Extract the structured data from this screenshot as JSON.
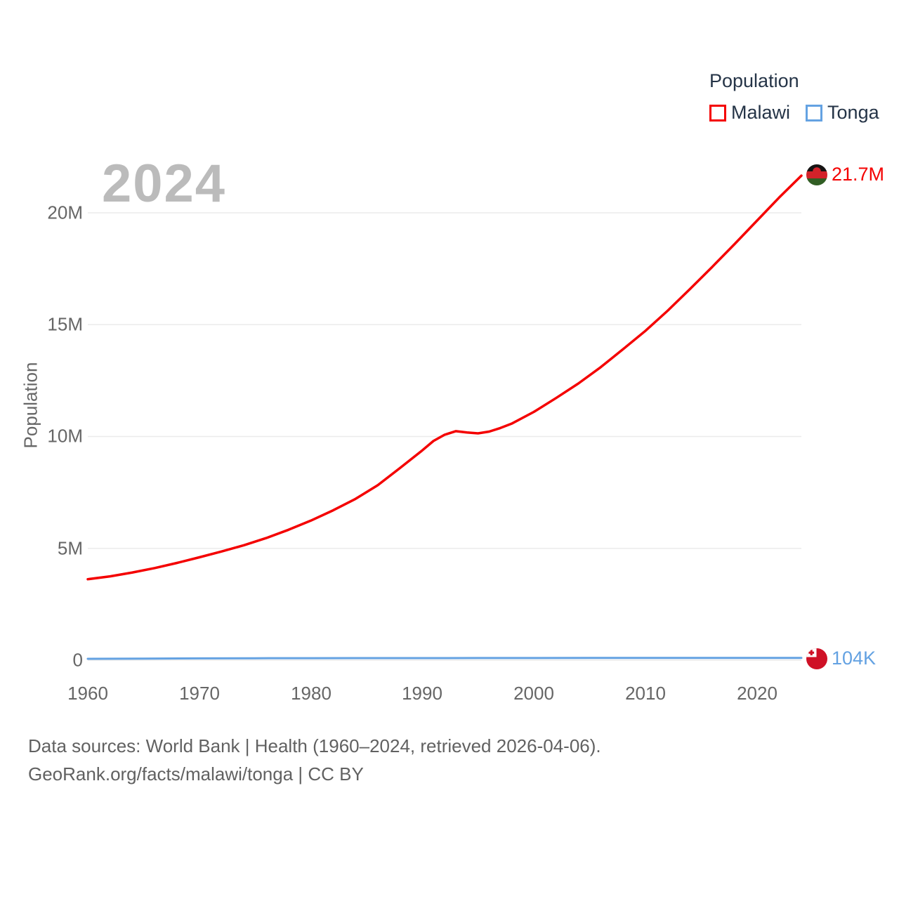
{
  "watermark": "2024",
  "legend": {
    "title": "Population",
    "items": [
      {
        "label": "Malawi",
        "color": "#f40000"
      },
      {
        "label": "Tonga",
        "color": "#64a2e2"
      }
    ]
  },
  "axes": {
    "y_label": "Population",
    "y_ticks": [
      "0",
      "5M",
      "10M",
      "15M",
      "20M"
    ],
    "x_ticks": [
      "1960",
      "1970",
      "1980",
      "1990",
      "2000",
      "2010",
      "2020"
    ]
  },
  "footer": {
    "line1": "Data sources: World Bank | Health (1960–2024, retrieved 2026-04-06).",
    "line2": "GeoRank.org/facts/malawi/tonga | CC BY"
  },
  "chart_data": {
    "type": "line",
    "year_label": "2024",
    "ylabel": "Population",
    "xlabel": "",
    "x_range": [
      1960,
      2024
    ],
    "y_range": [
      0,
      20000000
    ],
    "grid": "horizontal",
    "gridline_values": [
      0,
      5000000,
      10000000,
      15000000,
      20000000
    ],
    "legend_position": "top-right",
    "series": [
      {
        "name": "Malawi",
        "color": "#f40000",
        "end_label": "21.7M",
        "flag": "malawi",
        "x": [
          1960,
          1962,
          1964,
          1966,
          1968,
          1970,
          1972,
          1974,
          1976,
          1978,
          1980,
          1982,
          1984,
          1986,
          1988,
          1990,
          1991,
          1992,
          1993,
          1994,
          1995,
          1996,
          1997,
          1998,
          2000,
          2002,
          2004,
          2006,
          2008,
          2010,
          2012,
          2014,
          2016,
          2018,
          2020,
          2022,
          2024
        ],
        "values": [
          3620000,
          3750000,
          3920000,
          4120000,
          4350000,
          4600000,
          4860000,
          5140000,
          5460000,
          5830000,
          6240000,
          6700000,
          7210000,
          7820000,
          8590000,
          9380000,
          9800000,
          10080000,
          10240000,
          10180000,
          10140000,
          10220000,
          10380000,
          10570000,
          11100000,
          11720000,
          12370000,
          13100000,
          13900000,
          14720000,
          15620000,
          16590000,
          17580000,
          18600000,
          19640000,
          20680000,
          21660000
        ]
      },
      {
        "name": "Tonga",
        "color": "#64a2e2",
        "end_label": "104K",
        "flag": "tonga",
        "x": [
          1960,
          1965,
          1970,
          1975,
          1980,
          1985,
          1990,
          1995,
          2000,
          2005,
          2010,
          2015,
          2020,
          2024
        ],
        "values": [
          62000,
          72000,
          81000,
          88000,
          92000,
          94000,
          95000,
          96000,
          98000,
          101000,
          103000,
          104000,
          105000,
          104000
        ]
      }
    ]
  }
}
